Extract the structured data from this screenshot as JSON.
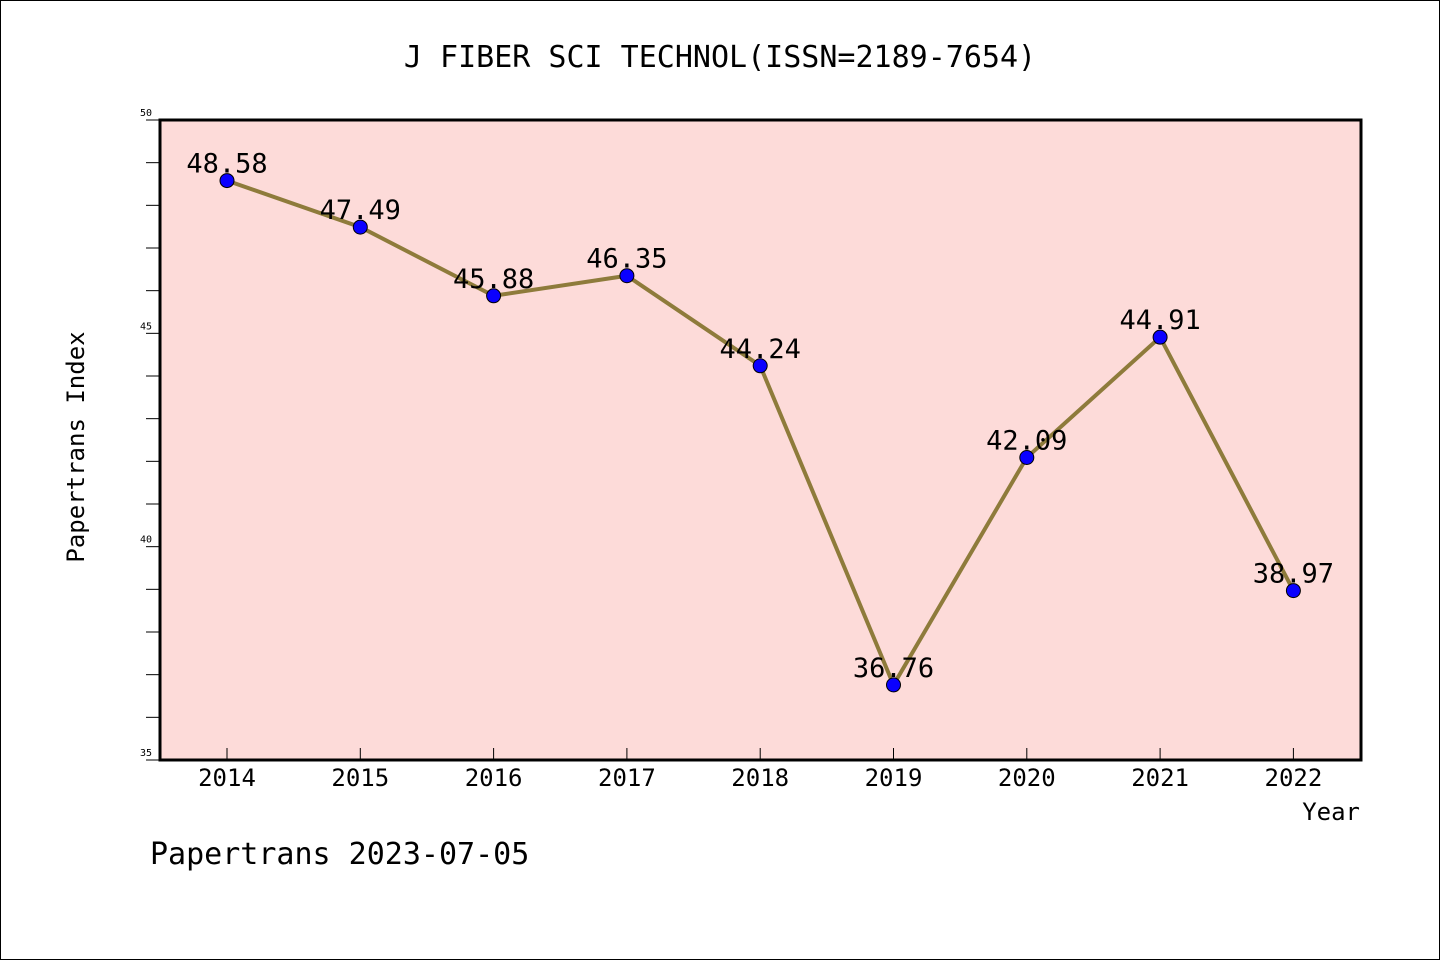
{
  "chart_data": {
    "type": "line",
    "title": "J FIBER SCI TECHNOL(ISSN=2189-7654)",
    "xlabel": "Year",
    "ylabel": "Papertrans Index",
    "footer": "Papertrans 2023-07-05",
    "categories": [
      "2014",
      "2015",
      "2016",
      "2017",
      "2018",
      "2019",
      "2020",
      "2021",
      "2022"
    ],
    "values": [
      48.58,
      47.49,
      45.88,
      46.35,
      44.24,
      36.76,
      42.09,
      44.91,
      38.97
    ],
    "data_labels": [
      "48.58",
      "47.49",
      "45.88",
      "46.35",
      "44.24",
      "36.76",
      "42.09",
      "44.91",
      "38.97"
    ],
    "ylim": [
      35,
      50
    ],
    "yticks": [
      "35",
      "40",
      "45",
      "50"
    ],
    "plot_background": "#fddbd9",
    "line_color": "#8e7b3b",
    "marker_color": "#0a00ff",
    "grid": false
  }
}
